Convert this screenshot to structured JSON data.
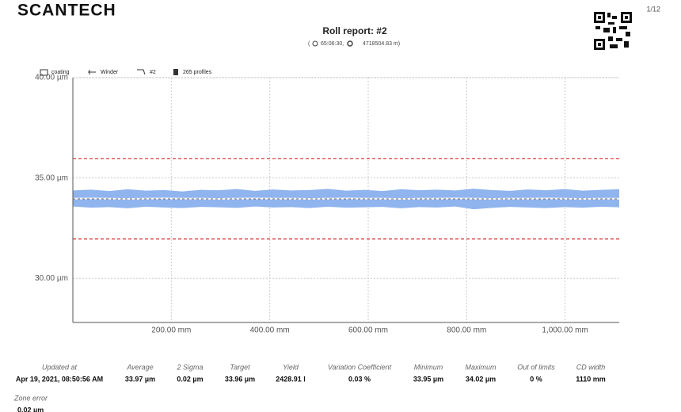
{
  "header": {
    "logo": "SCANTECH",
    "page": "1/12",
    "title": "Roll report: #2",
    "subtitle": [
      "(",
      "65:06:30,",
      "4718504.83 m)"
    ]
  },
  "toolbar": [
    "coating",
    "Winder",
    "#2",
    "265 profiles"
  ],
  "chart_data": {
    "type": "band",
    "x": [
      0,
      37,
      74,
      111,
      148,
      185,
      222,
      259,
      296,
      333,
      370,
      407,
      444,
      481,
      518,
      555,
      592,
      629,
      666,
      703,
      740,
      777,
      814,
      851,
      888,
      925,
      962,
      999,
      1036,
      1073,
      1110
    ],
    "band": {
      "color": "#8fb4ee",
      "upper": [
        34.38,
        34.42,
        34.35,
        34.44,
        34.37,
        34.4,
        34.33,
        34.41,
        34.39,
        34.45,
        34.36,
        34.43,
        34.38,
        34.4,
        34.46,
        34.37,
        34.41,
        34.35,
        34.44,
        34.39,
        34.42,
        34.38,
        34.47,
        34.4,
        34.36,
        34.43,
        34.39,
        34.45,
        34.37,
        34.41,
        34.44
      ],
      "lower": [
        33.58,
        33.52,
        33.55,
        33.49,
        33.57,
        33.53,
        33.5,
        33.56,
        33.54,
        33.51,
        33.58,
        33.53,
        33.55,
        33.5,
        33.57,
        33.52,
        33.54,
        33.56,
        33.49,
        33.55,
        33.53,
        33.58,
        33.44,
        33.51,
        33.56,
        33.53,
        33.5,
        33.55,
        33.52,
        33.57,
        33.54
      ]
    },
    "series": [
      {
        "color": "#ffffff",
        "values": [
          33.97,
          33.98,
          33.97,
          33.96,
          33.97,
          33.98,
          33.97,
          33.97,
          33.96,
          33.97,
          33.98,
          33.97,
          33.97,
          33.96,
          33.97,
          33.98,
          33.97,
          33.97,
          33.96,
          33.97,
          33.97,
          33.98,
          33.97,
          33.96,
          33.97,
          33.97,
          33.98,
          33.97,
          33.96,
          33.97,
          33.97
        ]
      }
    ],
    "target": {
      "value": 33.96,
      "color": "#333333"
    },
    "limits": {
      "values": [
        35.96,
        31.96
      ],
      "color": "#d62728"
    },
    "xlim": [
      0,
      1110
    ],
    "ylim": [
      27.8,
      40
    ],
    "xticks": [
      {
        "value": 200,
        "label": "200.00 mm"
      },
      {
        "value": 400,
        "label": "400.00 mm"
      },
      {
        "value": 600,
        "label": "600.00 mm"
      },
      {
        "value": 800,
        "label": "800.00 mm"
      },
      {
        "value": 1000,
        "label": "1,000.00 mm"
      }
    ],
    "yticks": [
      {
        "value": 30,
        "label": "30.00 µm"
      },
      {
        "value": 35,
        "label": "35.00 µm"
      },
      {
        "value": 40,
        "label": "40.00 µm"
      }
    ],
    "grid": true
  },
  "stats": [
    {
      "label": "Updated at",
      "value": "Apr 19, 2021, 08:50:56 AM"
    },
    {
      "label": "Average",
      "value": "33.97 µm"
    },
    {
      "label": "2 Sigma",
      "value": "0.02 µm"
    },
    {
      "label": "Target",
      "value": "33.96 µm"
    },
    {
      "label": "Yield",
      "value": "2428.91 l"
    },
    {
      "label": "Variation Coefficient",
      "value": "0.03 %"
    },
    {
      "label": "Minimum",
      "value": "33.95 µm"
    },
    {
      "label": "Maximum",
      "value": "34.02 µm"
    },
    {
      "label": "Out of limits",
      "value": "0 %"
    },
    {
      "label": "CD width",
      "value": "1110 mm"
    },
    {
      "label": "Zone error",
      "value": "0.02 µm"
    }
  ]
}
